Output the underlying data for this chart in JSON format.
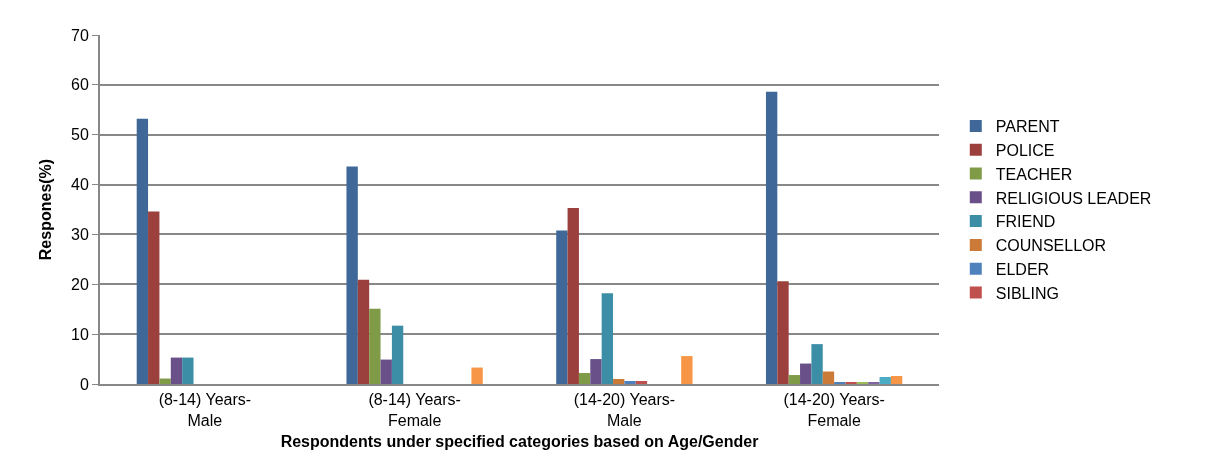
{
  "chart_data": {
    "type": "bar",
    "xlabel": "Respondents under specified categories based on Age/Gender",
    "ylabel": "Respones(%)",
    "categories": [
      "(8-14) Years-\nMale",
      "(8-14) Years-\nFemale",
      "(14-20) Years-\nMale",
      "(14-20) Years-\nFemale"
    ],
    "series": [
      {
        "name": "PARENT",
        "color": "#3f6899",
        "values": [
          53.2,
          43.6,
          30.8,
          58.6
        ]
      },
      {
        "name": "POLICE",
        "color": "#9c403d",
        "values": [
          34.6,
          20.9,
          35.3,
          20.6
        ]
      },
      {
        "name": "TEACHER",
        "color": "#7f9b48",
        "values": [
          1.1,
          15.1,
          2.2,
          1.8
        ]
      },
      {
        "name": "RELIGIOUS LEADER",
        "color": "#6a5088",
        "values": [
          5.3,
          4.9,
          5.0,
          4.1
        ]
      },
      {
        "name": "FRIEND",
        "color": "#3b8ea5",
        "values": [
          5.3,
          11.7,
          18.2,
          8.0
        ]
      },
      {
        "name": "COUNSELLOR",
        "color": "#cc7a38",
        "values": [
          null,
          null,
          1.0,
          2.5
        ]
      },
      {
        "name": "ELDER",
        "color": "#4f81bd",
        "values": [
          null,
          null,
          0.6,
          0.3
        ]
      },
      {
        "name": "SIBLING",
        "color": "#c0504d",
        "values": [
          null,
          null,
          0.6,
          0.3
        ]
      },
      {
        "color": "#9bbb59",
        "values": [
          null,
          null,
          null,
          0.3
        ]
      },
      {
        "color": "#8064a2",
        "values": [
          null,
          null,
          null,
          0.3
        ]
      },
      {
        "color": "#4bacc6",
        "values": [
          null,
          null,
          null,
          1.4
        ]
      },
      {
        "color": "#f79646",
        "values": [
          null,
          3.3,
          5.6,
          1.6
        ]
      }
    ],
    "ylim": [
      0,
      70
    ],
    "yticks": [
      0,
      10,
      20,
      30,
      40,
      50,
      60,
      70
    ],
    "grid": "y",
    "legend": "right"
  }
}
